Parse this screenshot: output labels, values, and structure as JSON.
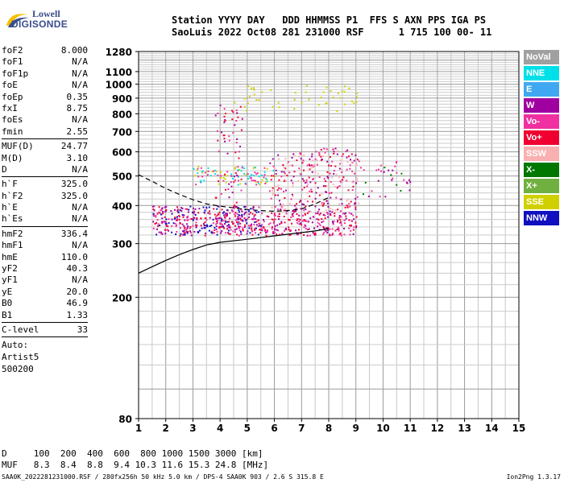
{
  "logo": {
    "line1": "Lowell",
    "line2": "DIGISONDE"
  },
  "header": {
    "row1": "Station YYYY DAY   DDD HHMMSS P1  FFS S AXN PPS IGA PS",
    "row2": "SaoLuis 2022 Oct08 281 231000 RSF      1 715 100 00- 11"
  },
  "params": {
    "group1": [
      {
        "name": "foF2",
        "value": "8.000"
      },
      {
        "name": "foF1",
        "value": "N/A"
      },
      {
        "name": "foF1p",
        "value": "N/A"
      },
      {
        "name": "foE",
        "value": "N/A"
      },
      {
        "name": "foEp",
        "value": "0.35"
      },
      {
        "name": "fxI",
        "value": "8.75"
      },
      {
        "name": "foEs",
        "value": "N/A"
      },
      {
        "name": "fmin",
        "value": "2.55"
      }
    ],
    "group2": [
      {
        "name": "MUF(D)",
        "value": "24.77"
      },
      {
        "name": "M(D)",
        "value": "3.10"
      },
      {
        "name": "D",
        "value": "N/A"
      }
    ],
    "group3": [
      {
        "name": "h`F",
        "value": "325.0"
      },
      {
        "name": "h`F2",
        "value": "325.0"
      },
      {
        "name": "h`E",
        "value": "N/A"
      },
      {
        "name": "h`Es",
        "value": "N/A"
      }
    ],
    "group4": [
      {
        "name": "hmF2",
        "value": "336.4"
      },
      {
        "name": "hmF1",
        "value": "N/A"
      },
      {
        "name": "hmE",
        "value": "110.0"
      },
      {
        "name": "yF2",
        "value": "40.3"
      },
      {
        "name": "yF1",
        "value": "N/A"
      },
      {
        "name": "yE",
        "value": "20.0"
      },
      {
        "name": "B0",
        "value": "46.9"
      },
      {
        "name": "B1",
        "value": "1.33"
      }
    ],
    "group5": [
      {
        "name": "C-level",
        "value": "33"
      }
    ],
    "auto": [
      "Auto:",
      "Artist5",
      "500200"
    ]
  },
  "legend": [
    {
      "label": "NoVal",
      "color": "#a0a0a0"
    },
    {
      "label": "NNE",
      "color": "#00e0e8"
    },
    {
      "label": "E",
      "color": "#40a8f0"
    },
    {
      "label": "W",
      "color": "#a000a0"
    },
    {
      "label": "Vo-",
      "color": "#f030a0"
    },
    {
      "label": "Vo+",
      "color": "#f00030"
    },
    {
      "label": "SSW",
      "color": "#f8b0b0"
    },
    {
      "label": "X-",
      "color": "#007800"
    },
    {
      "label": "X+",
      "color": "#70b040"
    },
    {
      "label": "SSE",
      "color": "#d0d000"
    },
    {
      "label": "NNW",
      "color": "#1010c0"
    }
  ],
  "footer": {
    "row1": "D     100  200  400  600  800 1000 1500 3000 [km]",
    "row2": "MUF   8.3  8.4  8.8  9.4 10.3 11.6 15.3 24.8 [MHz]",
    "file": "SAA0K_2022281231000.RSF / 280fx256h 50 kHz 5.0 km / DPS-4 SAA0K 903 / 2.6 S 315.8 E",
    "version": "Ion2Png 1.3.17"
  },
  "chart_data": {
    "type": "scatter",
    "x_ticks": [
      1,
      2,
      3,
      4,
      5,
      6,
      7,
      8,
      9,
      10,
      11,
      12,
      13,
      14,
      15
    ],
    "y_ticks": [
      80,
      200,
      300,
      400,
      500,
      600,
      700,
      800,
      900,
      1000,
      1100,
      1280
    ],
    "xlim": [
      1,
      15
    ],
    "ylim": [
      80,
      1280
    ],
    "y_scale": "log",
    "grid": true,
    "traces": [
      {
        "name": "trace-lower",
        "style": "solid",
        "color": "#000000",
        "x": [
          1.0,
          1.5,
          2.0,
          2.5,
          3.0,
          3.5,
          4.0,
          5.0,
          6.0,
          7.0,
          7.5,
          8.0
        ],
        "y": [
          240,
          252,
          264,
          276,
          287,
          297,
          303,
          310,
          318,
          326,
          330,
          336
        ]
      },
      {
        "name": "trace-upper",
        "style": "dashed",
        "color": "#000000",
        "x": [
          1.0,
          1.5,
          2.0,
          2.5,
          3.0,
          3.5,
          4.0,
          4.5,
          5.0,
          5.5,
          6.0,
          6.5,
          7.0,
          7.5,
          8.0
        ],
        "y": [
          505,
          480,
          455,
          435,
          418,
          405,
          398,
          393,
          388,
          385,
          383,
          385,
          390,
          405,
          425
        ]
      }
    ],
    "echo_regions": [
      {
        "x": [
          1.5,
          5.5
        ],
        "y": [
          320,
          400
        ],
        "colors": [
          "#a000a0",
          "#f030a0",
          "#1010c0",
          "#f00030"
        ],
        "density": 0.7
      },
      {
        "x": [
          5.5,
          9.0
        ],
        "y": [
          320,
          380
        ],
        "colors": [
          "#f030a0",
          "#a000a0",
          "#f00030"
        ],
        "density": 0.6
      },
      {
        "x": [
          3.0,
          6.0
        ],
        "y": [
          470,
          540
        ],
        "colors": [
          "#d0d000",
          "#00e0e8",
          "#f030a0"
        ],
        "density": 0.4
      },
      {
        "x": [
          3.8,
          4.8
        ],
        "y": [
          330,
          860
        ],
        "colors": [
          "#a000a0",
          "#f030a0",
          "#f00030"
        ],
        "density": 0.15
      },
      {
        "x": [
          5.8,
          9.1
        ],
        "y": [
          380,
          620
        ],
        "colors": [
          "#f030a0",
          "#f00030",
          "#a000a0",
          "#f8b0b0"
        ],
        "density": 0.3
      },
      {
        "x": [
          4.5,
          9.2
        ],
        "y": [
          820,
          1000
        ],
        "colors": [
          "#d0d000"
        ],
        "density": 0.08
      },
      {
        "x": [
          9.0,
          11.0
        ],
        "y": [
          430,
          560
        ],
        "colors": [
          "#f030a0",
          "#007800",
          "#a000a0"
        ],
        "density": 0.1
      }
    ]
  }
}
